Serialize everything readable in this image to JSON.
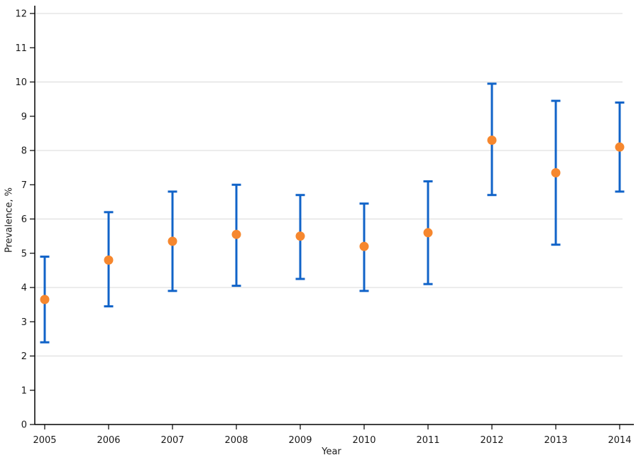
{
  "chart_data": {
    "type": "scatter",
    "subtype": "point-with-error-bars",
    "title": "",
    "xlabel": "Year",
    "ylabel": "Prevalence, %",
    "x": [
      2005,
      2006,
      2007,
      2008,
      2009,
      2010,
      2011,
      2012,
      2013,
      2014
    ],
    "series": [
      {
        "name": "Prevalence",
        "values": [
          3.65,
          4.8,
          5.35,
          5.55,
          5.5,
          5.2,
          5.6,
          8.3,
          7.35,
          8.1
        ],
        "ci_low": [
          2.4,
          3.45,
          3.9,
          4.05,
          4.25,
          3.9,
          4.1,
          6.7,
          5.25,
          6.8
        ],
        "ci_high": [
          4.9,
          6.2,
          6.8,
          7.0,
          6.7,
          6.45,
          7.1,
          9.95,
          9.45,
          9.4
        ]
      }
    ],
    "ylim": [
      0,
      12
    ],
    "ytick_step": 1,
    "gridline_values": [
      2,
      4,
      6,
      8,
      10,
      12
    ],
    "legend": "none",
    "colors": {
      "marker": "#f6872e",
      "error_bar": "#1063c8",
      "gridline": "#d9d9d9",
      "axis": "#000000",
      "text": "#1a1a1a",
      "background": "#ffffff"
    }
  }
}
